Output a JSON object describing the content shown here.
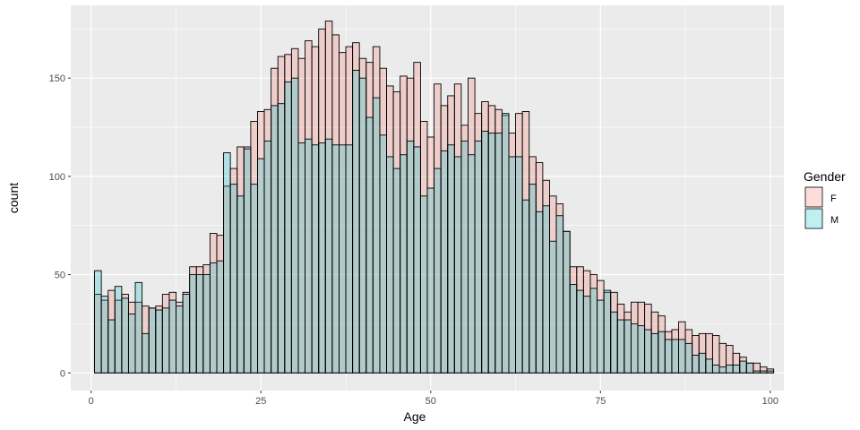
{
  "chart_data": {
    "type": "bar",
    "subtype": "overlapping-histogram",
    "xlabel": "Age",
    "ylabel": "count",
    "xlim": [
      -3,
      102
    ],
    "ylim": [
      -9,
      187
    ],
    "x_ticks": [
      0,
      25,
      50,
      75,
      100
    ],
    "y_ticks": [
      0,
      50,
      100,
      150
    ],
    "grid": true,
    "legend": {
      "title": "Gender",
      "position": "right"
    },
    "bin_width": 1,
    "x": [
      1,
      2,
      3,
      4,
      5,
      6,
      7,
      8,
      9,
      10,
      11,
      12,
      13,
      14,
      15,
      16,
      17,
      18,
      19,
      20,
      21,
      22,
      23,
      24,
      25,
      26,
      27,
      28,
      29,
      30,
      31,
      32,
      33,
      34,
      35,
      36,
      37,
      38,
      39,
      40,
      41,
      42,
      43,
      44,
      45,
      46,
      47,
      48,
      49,
      50,
      51,
      52,
      53,
      54,
      55,
      56,
      57,
      58,
      59,
      60,
      61,
      62,
      63,
      64,
      65,
      66,
      67,
      68,
      69,
      70,
      71,
      72,
      73,
      74,
      75,
      76,
      77,
      78,
      79,
      80,
      81,
      82,
      83,
      84,
      85,
      86,
      87,
      88,
      89,
      90,
      91,
      92,
      93,
      94,
      95,
      96,
      97,
      98,
      99,
      100
    ],
    "series": [
      {
        "name": "F",
        "color": "#F8766D",
        "values": [
          40,
          37,
          42,
          37,
          40,
          36,
          36,
          34,
          33,
          34,
          40,
          41,
          36,
          41,
          54,
          54,
          55,
          71,
          70,
          95,
          104,
          115,
          115,
          128,
          133,
          134,
          155,
          161,
          162,
          165,
          160,
          169,
          166,
          175,
          179,
          172,
          163,
          166,
          168,
          160,
          158,
          166,
          155,
          146,
          143,
          151,
          150,
          158,
          128,
          120,
          147,
          136,
          141,
          147,
          126,
          150,
          132,
          138,
          136,
          134,
          131,
          122,
          132,
          133,
          110,
          107,
          98,
          90,
          86,
          72,
          54,
          54,
          52,
          50,
          47,
          41,
          41,
          35,
          31,
          36,
          36,
          35,
          31,
          29,
          21,
          22,
          26,
          22,
          19,
          20,
          20,
          19,
          15,
          14,
          10,
          8,
          5,
          5,
          3,
          2
        ]
      },
      {
        "name": "M",
        "color": "#00BFC4",
        "values": [
          52,
          39,
          27,
          44,
          38,
          30,
          46,
          20,
          33,
          32,
          33,
          37,
          34,
          40,
          50,
          50,
          50,
          56,
          57,
          112,
          96,
          90,
          114,
          96,
          109,
          118,
          136,
          137,
          148,
          150,
          117,
          119,
          116,
          117,
          119,
          116,
          116,
          116,
          154,
          150,
          130,
          140,
          121,
          110,
          104,
          111,
          118,
          115,
          90,
          94,
          104,
          113,
          116,
          110,
          118,
          111,
          118,
          123,
          122,
          122,
          132,
          110,
          110,
          88,
          96,
          82,
          85,
          67,
          80,
          72,
          45,
          42,
          39,
          43,
          37,
          42,
          31,
          27,
          27,
          25,
          24,
          22,
          20,
          21,
          17,
          17,
          17,
          15,
          9,
          10,
          7,
          4,
          3,
          4,
          4,
          6,
          5,
          1,
          1,
          1
        ]
      }
    ]
  }
}
